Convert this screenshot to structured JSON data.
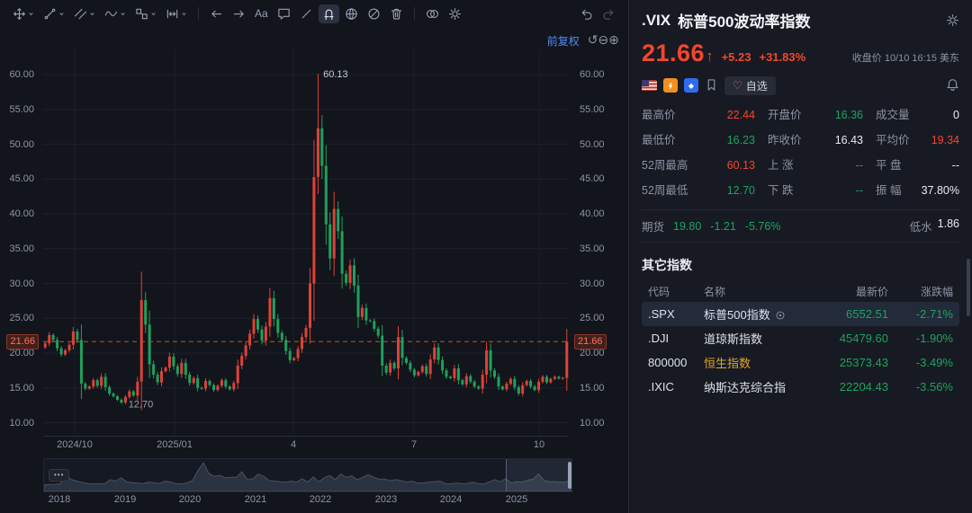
{
  "colors": {
    "up": "#f1472f",
    "down": "#1da35f",
    "flat": "#e6eaf2",
    "label": "#8b93a4",
    "yellow": "#e0a62e",
    "accent_blue": "#4d8df2",
    "price_line": "#c05a21",
    "candle_up": "#dd4237",
    "candle_down": "#1fa05c"
  },
  "toolbar": {
    "items": [
      {
        "name": "move-icon",
        "caret": true
      },
      {
        "name": "trend-line-icon",
        "caret": true
      },
      {
        "name": "channel-icon",
        "caret": true
      },
      {
        "name": "wave-icon",
        "caret": true
      },
      {
        "name": "pattern-icon",
        "caret": true
      },
      {
        "name": "measure-icon",
        "caret": true
      },
      {
        "divider": true
      },
      {
        "name": "arrow-left-icon"
      },
      {
        "name": "arrow-right-icon"
      },
      {
        "name": "text-icon",
        "glyph": "Aa"
      },
      {
        "name": "comment-icon"
      },
      {
        "name": "slash-icon"
      },
      {
        "name": "magnet-icon",
        "active": true
      },
      {
        "name": "globe-icon"
      },
      {
        "name": "ban-icon"
      },
      {
        "name": "trash-icon"
      },
      {
        "divider": true
      },
      {
        "name": "circles-icon"
      },
      {
        "name": "gear-icon"
      },
      {
        "spacer": true
      },
      {
        "name": "undo-icon"
      },
      {
        "name": "redo-icon",
        "disabled": true
      }
    ]
  },
  "chart": {
    "adjust_label": "前复权",
    "controls": [
      {
        "name": "reset-zoom-icon",
        "glyph": "↺"
      },
      {
        "name": "zoom-out-icon",
        "glyph": "⊖"
      },
      {
        "name": "zoom-in-icon",
        "glyph": "⊕"
      }
    ],
    "more_button": "•••"
  },
  "chart_data": {
    "type": "candlestick",
    "symbol": ".VIX",
    "period": "daily",
    "y_ticks": [
      60,
      55,
      50,
      45,
      40,
      35,
      30,
      25,
      20,
      15,
      10
    ],
    "y_tick_labels": [
      "60.00",
      "55.00",
      "50.00",
      "45.00",
      "40.00",
      "35.00",
      "30.00",
      "25.00",
      "20.00",
      "15.00",
      "10.00"
    ],
    "y_range": [
      8,
      63.5
    ],
    "x_tick_labels": [
      "2024/10",
      "2025/01",
      "4",
      "7",
      "10"
    ],
    "x_tick_pos": [
      0.06,
      0.25,
      0.476,
      0.705,
      0.944
    ],
    "current_price": 21.66,
    "high_annotation": {
      "value": 60.13,
      "label": "60.13"
    },
    "low_annotation": {
      "value": 12.7,
      "label": "12.70"
    },
    "closes": [
      21.4,
      22.6,
      21.9,
      20.7,
      19.8,
      20.4,
      21.2,
      23.1,
      21.9,
      15.6,
      14.9,
      15.2,
      16.1,
      15.3,
      16.6,
      15.1,
      14.2,
      13.8,
      13.3,
      12.9,
      13.7,
      14.5,
      13.9,
      15.9,
      27.6,
      24.1,
      18.4,
      16.9,
      15.8,
      17.4,
      17.9,
      19.5,
      18.1,
      17.0,
      18.6,
      16.9,
      15.7,
      16.4,
      15.0,
      14.9,
      16.0,
      15.4,
      14.7,
      15.3,
      16.1,
      15.2,
      14.8,
      15.7,
      18.2,
      19.6,
      21.1,
      22.8,
      24.9,
      23.4,
      21.8,
      23.8,
      27.9,
      24.9,
      22.9,
      21.9,
      20.3,
      19.0,
      19.3,
      20.6,
      22.3,
      23.6,
      30.0,
      45.3,
      52.3,
      46.9,
      38.5,
      33.6,
      40.7,
      37.5,
      31.4,
      30.1,
      32.6,
      29.7,
      25.2,
      26.5,
      24.7,
      24.6,
      23.5,
      22.5,
      18.2,
      17.2,
      18.6,
      17.8,
      22.3,
      19.3,
      18.6,
      17.6,
      16.8,
      17.3,
      18.1,
      17.0,
      19.1,
      20.8,
      19.0,
      17.5,
      16.6,
      16.4,
      17.8,
      16.1,
      15.5,
      16.7,
      15.9,
      15.2,
      14.9,
      16.9,
      20.4,
      17.5,
      16.6,
      15.2,
      14.8,
      15.6,
      16.3,
      15.1,
      14.2,
      15.4,
      16.0,
      15.2,
      14.7,
      15.9,
      16.6,
      15.8,
      16.3,
      16.6,
      16.36,
      16.43,
      21.66
    ],
    "navigator": {
      "years": [
        "2018",
        "2019",
        "2020",
        "2021",
        "2022",
        "2023",
        "2024",
        "2025"
      ],
      "values": [
        10,
        11,
        11,
        13,
        29,
        21,
        18,
        15,
        13,
        12,
        13,
        12,
        21,
        18,
        25,
        17,
        15,
        14,
        13,
        16,
        15,
        13,
        18,
        16,
        13,
        12,
        14,
        19,
        40,
        57,
        34,
        28,
        30,
        25,
        26,
        26,
        38,
        21,
        23,
        33,
        28,
        19,
        18,
        17,
        16,
        18,
        16,
        23,
        16,
        27,
        17,
        25,
        30,
        21,
        33,
        26,
        29,
        21,
        26,
        32,
        26,
        22,
        22,
        19,
        21,
        19,
        16,
        18,
        14,
        14,
        16,
        17,
        18,
        13,
        12,
        14,
        13,
        13,
        16,
        13,
        12,
        16,
        21,
        17,
        23,
        14,
        17,
        16,
        20,
        22,
        33,
        19,
        17,
        17,
        16,
        16,
        22
      ],
      "brush_start_frac": 0.875
    }
  },
  "quote": {
    "symbol": ".VIX",
    "name": "标普500波动率指数",
    "price": "21.66",
    "direction": "↑",
    "change": "+5.23",
    "change_pct": "+31.83%",
    "status": "收盘价 10/10 16:15 美东",
    "gem_glyph": "◆",
    "watchlist": {
      "heart": "♡",
      "label": "自选"
    },
    "stats": [
      {
        "label": "最高价",
        "value": "22.44",
        "color": "up"
      },
      {
        "label": "开盘价",
        "value": "16.36",
        "color": "down"
      },
      {
        "label": "成交量",
        "value": "0",
        "color": "flat"
      },
      {
        "label": "最低价",
        "value": "16.23",
        "color": "down"
      },
      {
        "label": "昨收价",
        "value": "16.43",
        "color": "flat"
      },
      {
        "label": "平均价",
        "value": "19.34",
        "color": "up"
      },
      {
        "label": "52周最高",
        "value": "60.13",
        "color": "up"
      },
      {
        "label": "上 涨",
        "value": "--",
        "color": "up"
      },
      {
        "label": "平 盘",
        "value": "--",
        "color": "flat"
      },
      {
        "label": "52周最低",
        "value": "12.70",
        "color": "down"
      },
      {
        "label": "下 跌",
        "value": "--",
        "color": "down"
      },
      {
        "label": "振 幅",
        "value": "37.80%",
        "color": "flat"
      }
    ],
    "futures": {
      "label": "期货",
      "price": "19.80",
      "change": "-1.21",
      "pct": "-5.76%",
      "basis_label": "低水",
      "basis": "1.86"
    }
  },
  "indices": {
    "title": "其它指数",
    "headers": [
      "代码",
      "名称",
      "最新价",
      "涨跌幅"
    ],
    "rows": [
      {
        "code": ".SPX",
        "name": "标普500指数",
        "price": "6552.51",
        "pct": "-2.71%",
        "selected": true,
        "icon": "target-icon"
      },
      {
        "code": ".DJI",
        "name": "道琼斯指数",
        "price": "45479.60",
        "pct": "-1.90%"
      },
      {
        "code": "800000",
        "name": "恒生指数",
        "price": "25373.43",
        "pct": "-3.49%",
        "name_color": "yellow"
      },
      {
        "code": ".IXIC",
        "name": "纳斯达克综合指",
        "price": "22204.43",
        "pct": "-3.56%"
      }
    ]
  }
}
